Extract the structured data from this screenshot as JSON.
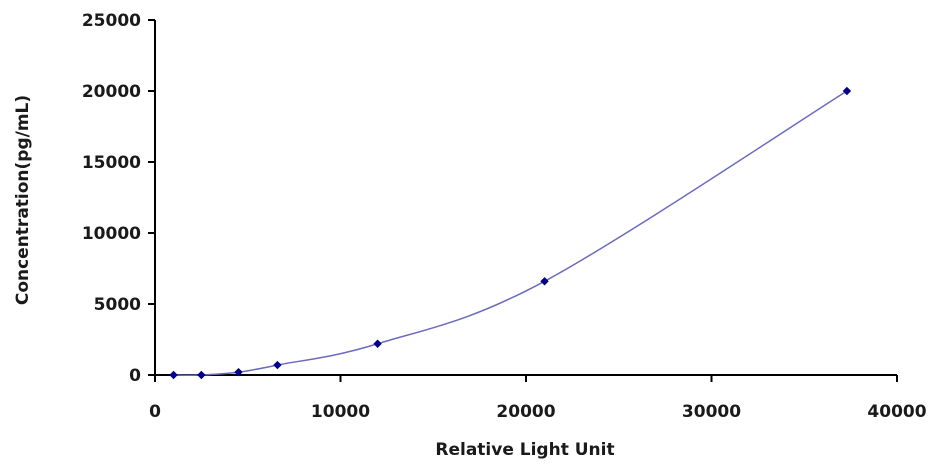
{
  "chart_data": {
    "type": "scatter",
    "title": "",
    "xlabel": "Relative Light Unit",
    "ylabel": "Concentration(pg/mL)",
    "xlim": [
      0,
      40000
    ],
    "ylim": [
      0,
      25000
    ],
    "xticks": [
      "0",
      "10000",
      "20000",
      "30000",
      "40000"
    ],
    "yticks": [
      "0",
      "5000",
      "10000",
      "15000",
      "20000",
      "25000"
    ],
    "grid": false,
    "legend": "none",
    "series": [
      {
        "color": "#00008b",
        "line_color": "#6b6bbf",
        "x": [
          1000,
          2500,
          4500,
          6600,
          12000,
          21000,
          37300
        ],
        "y": [
          0,
          0,
          200,
          700,
          2200,
          6600,
          20000
        ]
      }
    ]
  }
}
